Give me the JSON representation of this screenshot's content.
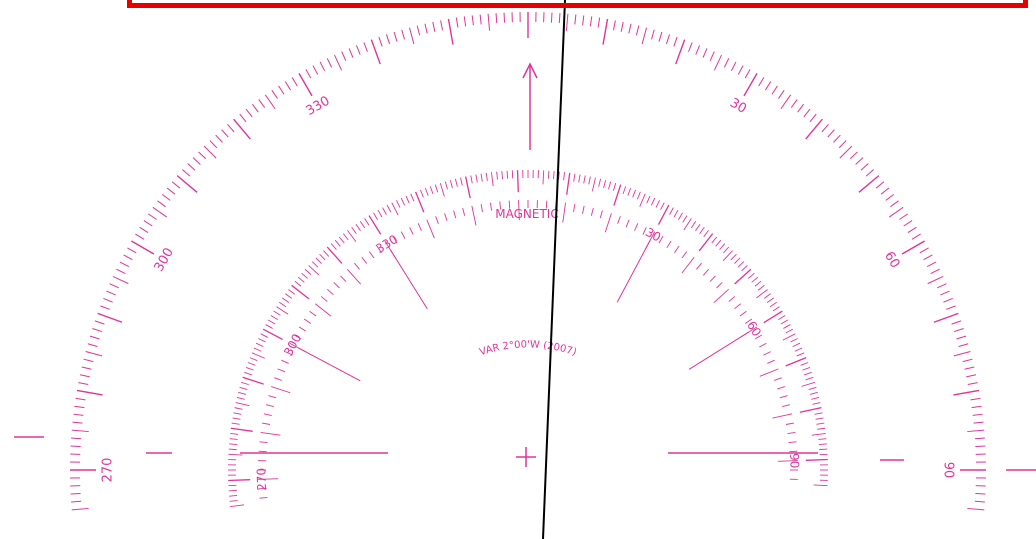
{
  "colors": {
    "compass_magenta": "#e0339c",
    "selection_red": "#e60000",
    "course_line": "#000000",
    "background": "#ffffff"
  },
  "compass_rose": {
    "outer_ring_labels": [
      {
        "deg": 330,
        "text": "330"
      },
      {
        "deg": 30,
        "text": "30"
      },
      {
        "deg": 300,
        "text": "300"
      },
      {
        "deg": 60,
        "text": "60"
      },
      {
        "deg": 270,
        "text": "270"
      },
      {
        "deg": 90,
        "text": "90"
      }
    ],
    "inner_ring_labels": [
      {
        "deg": 330,
        "text": "330"
      },
      {
        "deg": 30,
        "text": "30"
      },
      {
        "deg": 300,
        "text": "300"
      },
      {
        "deg": 60,
        "text": "60"
      },
      {
        "deg": 270,
        "text": "270"
      },
      {
        "deg": 90,
        "text": "90"
      }
    ],
    "magnetic_label": "MAGNETIC",
    "variation_label": "VAR 2°00'W (2007)"
  },
  "course_line": {
    "from_heading_deg": 4
  }
}
